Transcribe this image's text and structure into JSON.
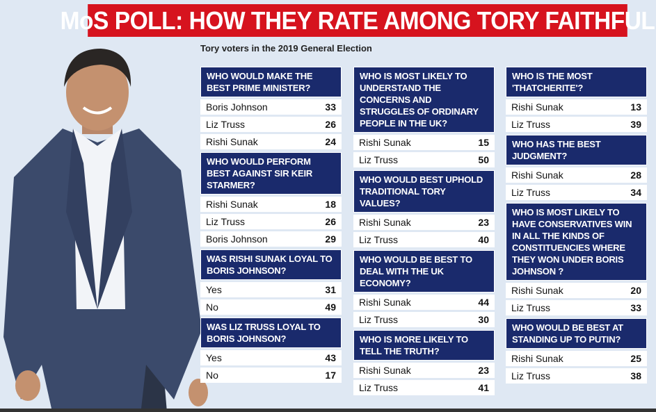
{
  "title": "MoS POLL: HOW THEY RATE AMONG TORY FAITHFUL",
  "subtitle": "Tory voters in the 2019 General Election",
  "columns": [
    [
      {
        "question": "WHO WOULD MAKE THE BEST PRIME MINISTER?",
        "rows": [
          [
            "Boris Johnson",
            "33"
          ],
          [
            "Liz Truss",
            "26"
          ],
          [
            "Rishi Sunak",
            "24"
          ]
        ]
      },
      {
        "question": "WHO WOULD PERFORM BEST AGAINST SIR KEIR STARMER?",
        "rows": [
          [
            "Rishi Sunak",
            "18"
          ],
          [
            "Liz Truss",
            "26"
          ],
          [
            "Boris Johnson",
            "29"
          ]
        ]
      },
      {
        "question": "WAS RISHI SUNAK LOYAL TO BORIS JOHNSON?",
        "rows": [
          [
            "Yes",
            "31"
          ],
          [
            "No",
            "49"
          ]
        ]
      },
      {
        "question": "WAS LIZ TRUSS LOYAL TO BORIS JOHNSON?",
        "rows": [
          [
            "Yes",
            "43"
          ],
          [
            "No",
            "17"
          ]
        ]
      }
    ],
    [
      {
        "question": "WHO IS MOST LIKELY TO UNDERSTAND THE CONCERNS AND STRUGGLES OF ORDINARY PEOPLE IN THE UK?",
        "rows": [
          [
            "Rishi Sunak",
            "15"
          ],
          [
            "Liz Truss",
            "50"
          ]
        ]
      },
      {
        "question": "WHO WOULD BEST UPHOLD TRADITIONAL TORY VALUES?",
        "rows": [
          [
            "Rishi Sunak",
            "23"
          ],
          [
            "Liz Truss",
            "40"
          ]
        ]
      },
      {
        "question": "WHO WOULD BE BEST TO DEAL WITH THE UK ECONOMY?",
        "rows": [
          [
            "Rishi Sunak",
            "44"
          ],
          [
            "Liz Truss",
            "30"
          ]
        ]
      },
      {
        "question": "WHO IS MORE LIKELY TO TELL THE TRUTH?",
        "rows": [
          [
            "Rishi Sunak",
            "23"
          ],
          [
            "Liz Truss",
            "41"
          ]
        ]
      }
    ],
    [
      {
        "question": "WHO IS THE MOST 'THATCHERITE'?",
        "rows": [
          [
            "Rishi Sunak",
            "13"
          ],
          [
            "Liz Truss",
            "39"
          ]
        ]
      },
      {
        "question": "WHO HAS THE BEST JUDGMENT?",
        "rows": [
          [
            "Rishi Sunak",
            "28"
          ],
          [
            "Liz Truss",
            "34"
          ]
        ]
      },
      {
        "question": "WHO IS MOST LIKELY TO HAVE CONSERVATIVES WIN IN ALL THE KINDS OF CONSTITUENCIES WHERE THEY WON UNDER BORIS JOHNSON ?",
        "rows": [
          [
            "Rishi Sunak",
            "20"
          ],
          [
            "Liz Truss",
            "33"
          ]
        ]
      },
      {
        "question": "WHO WOULD BE BEST AT STANDING UP TO PUTIN?",
        "rows": [
          [
            "Rishi Sunak",
            "25"
          ],
          [
            "Liz Truss",
            "38"
          ]
        ]
      }
    ]
  ]
}
